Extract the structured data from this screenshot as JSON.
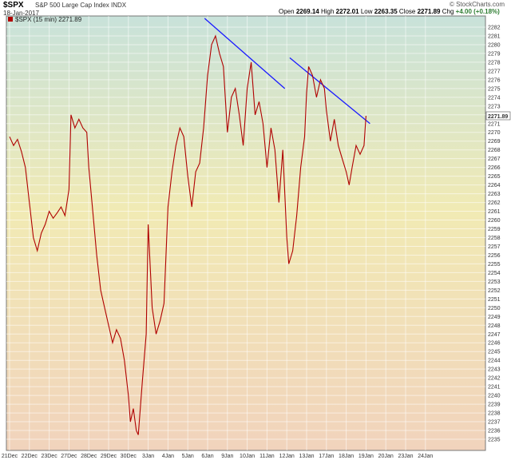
{
  "header": {
    "symbol": "$SPX",
    "name": "S&P 500 Large Cap Index  INDX",
    "date": "18-Jan-2017",
    "open_label": "Open",
    "open": "2269.14",
    "high_label": "High",
    "high": "2272.01",
    "low_label": "Low",
    "low": "2263.35",
    "close_label": "Close",
    "close": "2271.89",
    "chg_label": "Chg",
    "chg": "+4.00 (+0.18%)",
    "brand": "© StockCharts.com"
  },
  "chart_data": {
    "type": "line",
    "legend": "$SPX (15 min) 2271.89",
    "last_value_label": "2271.89",
    "x_tick_labels": [
      "21Dec",
      "22Dec",
      "23Dec",
      "27Dec",
      "28Dec",
      "29Dec",
      "30Dec",
      "3Jan",
      "4Jan",
      "5Jan",
      "6Jan",
      "9Jan",
      "10Jan",
      "11Jan",
      "12Jan",
      "13Jan",
      "17Jan",
      "18Jan",
      "19Jan",
      "20Jan",
      "23Jan",
      "24Jan"
    ],
    "y_tick_labels": [
      "2235",
      "2236",
      "2237",
      "2238",
      "2239",
      "2240",
      "2241",
      "2242",
      "2243",
      "2244",
      "2245",
      "2246",
      "2247",
      "2248",
      "2249",
      "2250",
      "2251",
      "2252",
      "2253",
      "2254",
      "2255",
      "2256",
      "2257",
      "2258",
      "2259",
      "2260",
      "2261",
      "2262",
      "2263",
      "2264",
      "2265",
      "2266",
      "2267",
      "2268",
      "2269",
      "2270",
      "2271",
      "2272",
      "2273",
      "2274",
      "2275",
      "2276",
      "2277",
      "2278",
      "2279",
      "2280",
      "2281",
      "2282"
    ],
    "ylim": [
      2234,
      2283
    ],
    "grid": true,
    "series": [
      {
        "color": "#b00000",
        "points": [
          [
            0,
            2269.5
          ],
          [
            0.2,
            2268.5
          ],
          [
            0.4,
            2269.2
          ],
          [
            0.6,
            2267.8
          ],
          [
            0.8,
            2266.0
          ],
          [
            1,
            2262.0
          ],
          [
            1.2,
            2258.0
          ],
          [
            1.4,
            2256.5
          ],
          [
            1.6,
            2258.5
          ],
          [
            1.8,
            2259.5
          ],
          [
            2,
            2261.0
          ],
          [
            2.2,
            2260.2
          ],
          [
            2.4,
            2260.8
          ],
          [
            2.6,
            2261.5
          ],
          [
            2.8,
            2260.5
          ],
          [
            3,
            2263.5
          ],
          [
            3.1,
            2272.0
          ],
          [
            3.3,
            2270.5
          ],
          [
            3.5,
            2271.5
          ],
          [
            3.7,
            2270.5
          ],
          [
            3.9,
            2270.0
          ],
          [
            4,
            2266.0
          ],
          [
            4.2,
            2261.0
          ],
          [
            4.4,
            2256.0
          ],
          [
            4.6,
            2252.0
          ],
          [
            4.8,
            2250.0
          ],
          [
            5,
            2248.0
          ],
          [
            5.2,
            2246.0
          ],
          [
            5.4,
            2247.5
          ],
          [
            5.6,
            2246.5
          ],
          [
            5.8,
            2244.0
          ],
          [
            6,
            2240.0
          ],
          [
            6.1,
            2237.0
          ],
          [
            6.25,
            2238.5
          ],
          [
            6.4,
            2236.0
          ],
          [
            6.5,
            2235.5
          ],
          [
            6.7,
            2241.5
          ],
          [
            6.9,
            2247.0
          ],
          [
            7,
            2259.5
          ],
          [
            7.2,
            2250.0
          ],
          [
            7.4,
            2247.0
          ],
          [
            7.6,
            2248.5
          ],
          [
            7.8,
            2250.5
          ],
          [
            8,
            2261.5
          ],
          [
            8.2,
            2265.5
          ],
          [
            8.4,
            2268.5
          ],
          [
            8.6,
            2270.5
          ],
          [
            8.8,
            2269.5
          ],
          [
            9,
            2265.0
          ],
          [
            9.2,
            2261.5
          ],
          [
            9.4,
            2265.5
          ],
          [
            9.6,
            2266.5
          ],
          [
            9.8,
            2270.5
          ],
          [
            10,
            2276.5
          ],
          [
            10.2,
            2280.0
          ],
          [
            10.4,
            2281.0
          ],
          [
            10.6,
            2279.0
          ],
          [
            10.8,
            2277.5
          ],
          [
            11,
            2270.0
          ],
          [
            11.2,
            2274.0
          ],
          [
            11.4,
            2275.0
          ],
          [
            11.6,
            2272.0
          ],
          [
            11.8,
            2268.5
          ],
          [
            12,
            2275.0
          ],
          [
            12.2,
            2278.0
          ],
          [
            12.4,
            2272.0
          ],
          [
            12.6,
            2273.5
          ],
          [
            12.8,
            2271.0
          ],
          [
            13,
            2266.0
          ],
          [
            13.2,
            2270.5
          ],
          [
            13.4,
            2268.0
          ],
          [
            13.6,
            2262.0
          ],
          [
            13.8,
            2268.0
          ],
          [
            14,
            2258.0
          ],
          [
            14.1,
            2255.0
          ],
          [
            14.3,
            2256.5
          ],
          [
            14.5,
            2260.5
          ],
          [
            14.7,
            2266.0
          ],
          [
            14.9,
            2269.5
          ],
          [
            15,
            2274.5
          ],
          [
            15.1,
            2277.5
          ],
          [
            15.3,
            2276.5
          ],
          [
            15.5,
            2274.0
          ],
          [
            15.7,
            2276.0
          ],
          [
            15.9,
            2275.0
          ],
          [
            16,
            2272.5
          ],
          [
            16.2,
            2269.0
          ],
          [
            16.4,
            2271.5
          ],
          [
            16.6,
            2268.5
          ],
          [
            16.8,
            2267.0
          ],
          [
            17,
            2265.5
          ],
          [
            17.15,
            2264.0
          ],
          [
            17.3,
            2266.0
          ],
          [
            17.5,
            2268.5
          ],
          [
            17.7,
            2267.5
          ],
          [
            17.9,
            2268.5
          ],
          [
            18,
            2271.89
          ]
        ]
      }
    ],
    "trendlines": [
      {
        "color": "#1a1aff",
        "from": [
          9.85,
          2283.0
        ],
        "to": [
          13.9,
          2275.0
        ]
      },
      {
        "color": "#1a1aff",
        "from": [
          14.15,
          2278.5
        ],
        "to": [
          18.2,
          2271.0
        ]
      }
    ]
  }
}
